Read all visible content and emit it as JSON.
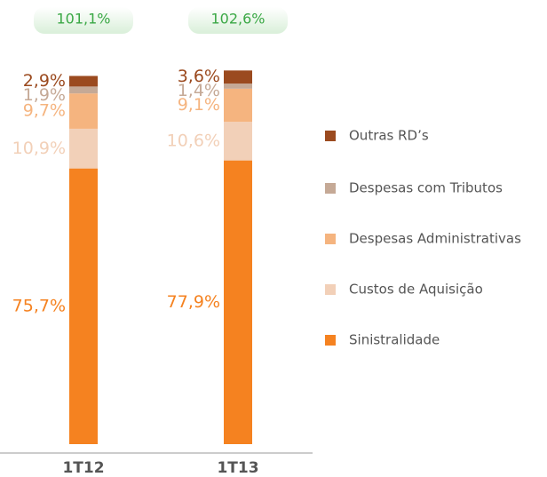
{
  "chart_data": {
    "type": "stacked_bar",
    "categories": [
      "1T12",
      "1T13"
    ],
    "totals": [
      101.1,
      102.6
    ],
    "total_labels": [
      "101,1%",
      "102,6%"
    ],
    "series": [
      {
        "name": "Sinistralidade",
        "color": "#f58220",
        "values": [
          75.7,
          77.9
        ],
        "value_labels": [
          "75,7%",
          "77,9%"
        ]
      },
      {
        "name": "Custos de Aquisição",
        "color": "#f2d0b8",
        "values": [
          10.9,
          10.6
        ],
        "value_labels": [
          "10,9%",
          "10,6%"
        ]
      },
      {
        "name": "Despesas Administrativas",
        "color": "#f5b47f",
        "values": [
          9.7,
          9.1
        ],
        "value_labels": [
          "9,7%",
          "9,1%"
        ]
      },
      {
        "name": "Despesas com Tributos",
        "color": "#c5a996",
        "values": [
          1.9,
          1.4
        ],
        "value_labels": [
          "1,9%",
          "1,4%"
        ]
      },
      {
        "name": "Outras RD’s",
        "color": "#9b4a1f",
        "values": [
          2.9,
          3.6
        ],
        "value_labels": [
          "2,9%",
          "3,6%"
        ]
      }
    ]
  }
}
